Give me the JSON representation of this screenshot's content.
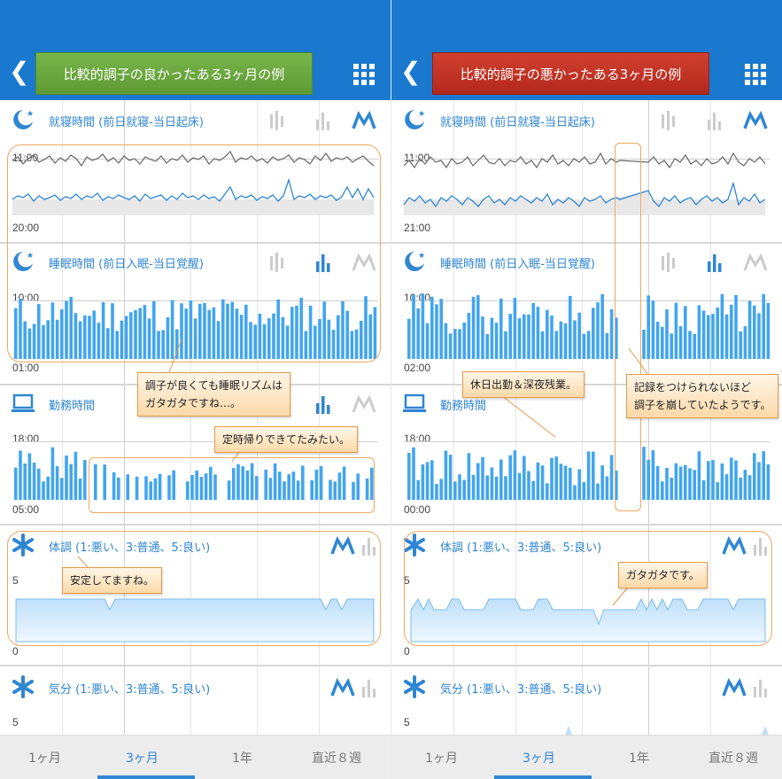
{
  "panels": [
    {
      "title": "比較的調子の良かったある3ヶ月の例",
      "tone": "good",
      "sections": {
        "bedtime": {
          "label": "就寝時間 (前日就寝-当日起床)",
          "tick_top": "11:00",
          "tick_bottom": "20:00"
        },
        "sleep": {
          "label": "睡眠時間 (前日入眠-当日覚醒)",
          "tick_top": "10:00",
          "tick_bottom": "01:00"
        },
        "work": {
          "label": "勤務時間",
          "tick_top": "18:00",
          "tick_bottom": "05:00"
        },
        "condition": {
          "label": "体調 (1:悪い、3:普通、5:良い)",
          "tick_top": "5",
          "tick_bottom": "0"
        },
        "mood": {
          "label": "気分 (1:悪い、3:普通、5:良い)",
          "tick_top": "5"
        }
      },
      "callouts": [
        {
          "lines": [
            "調子が良くても睡眠リズムは",
            "ガタガタですね…。"
          ]
        },
        {
          "lines": [
            "定時帰りできてたみたい。"
          ]
        },
        {
          "lines": [
            "安定してますね。"
          ]
        }
      ]
    },
    {
      "title": "比較的調子の悪かったある3ヶ月の例",
      "tone": "bad",
      "sections": {
        "bedtime": {
          "label": "就寝時間 (前日就寝-当日起床)",
          "tick_top": "11:00",
          "tick_bottom": "21:00"
        },
        "sleep": {
          "label": "睡眠時間 (前日入眠-当日覚醒)",
          "tick_top": "10:00",
          "tick_bottom": "02:00"
        },
        "work": {
          "label": "勤務時間",
          "tick_top": "18:00",
          "tick_bottom": "00:00"
        },
        "condition": {
          "label": "体調 (1:悪い、3:普通、5:良い)",
          "tick_top": "5",
          "tick_bottom": "0"
        },
        "mood": {
          "label": "気分 (1:悪い、3:普通、5:良い)",
          "tick_top": "5"
        }
      },
      "callouts": [
        {
          "lines": [
            "休日出勤＆深夜残業。"
          ]
        },
        {
          "lines": [
            "記録をつけられないほど",
            "調子を崩していたようです。"
          ]
        },
        {
          "lines": [
            "ガタガタです。"
          ]
        }
      ]
    }
  ],
  "bottom_tabs": [
    "1ヶ月",
    "3ヶ月",
    "1年",
    "直近８週"
  ],
  "active_tab": "3ヶ月",
  "colors": {
    "header": "#1a79cf",
    "accent": "#2f86d2",
    "bar": "#42a5f0",
    "good_title": "#6aa83f",
    "bad_title": "#c0342a",
    "callout_border": "#e69a47"
  }
}
